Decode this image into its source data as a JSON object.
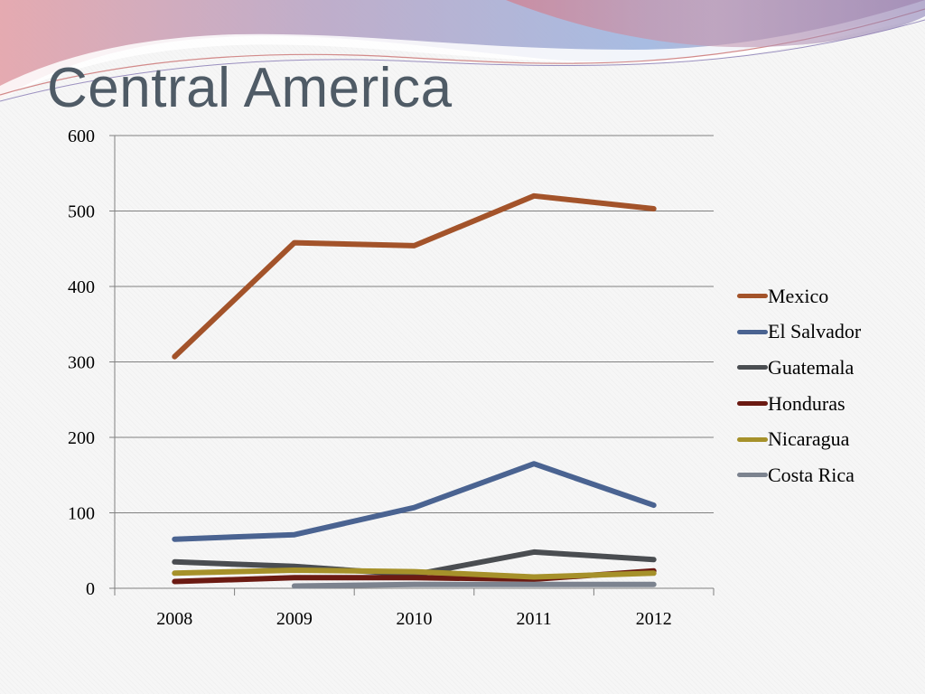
{
  "slide": {
    "title": "Central America"
  },
  "chart_data": {
    "type": "line",
    "title": "",
    "xlabel": "",
    "ylabel": "",
    "categories": [
      "2008",
      "2009",
      "2010",
      "2011",
      "2012"
    ],
    "ylim": [
      0,
      600
    ],
    "yticks": [
      0,
      100,
      200,
      300,
      400,
      500,
      600
    ],
    "grid": true,
    "legend_position": "right",
    "series": [
      {
        "name": "Mexico",
        "color": "#a3532a",
        "values": [
          307,
          458,
          454,
          520,
          503
        ]
      },
      {
        "name": "El Salvador",
        "color": "#4a6391",
        "values": [
          65,
          71,
          107,
          165,
          110
        ]
      },
      {
        "name": "Guatemala",
        "color": "#4a4d51",
        "values": [
          35,
          29,
          18,
          48,
          38
        ]
      },
      {
        "name": "Honduras",
        "color": "#6b1a12",
        "values": [
          9,
          14,
          14,
          12,
          23
        ]
      },
      {
        "name": "Nicaragua",
        "color": "#a6912a",
        "values": [
          20,
          24,
          22,
          15,
          20
        ]
      },
      {
        "name": "Costa Rica",
        "color": "#7c838f",
        "values": [
          null,
          3,
          5,
          5,
          5
        ]
      }
    ]
  }
}
